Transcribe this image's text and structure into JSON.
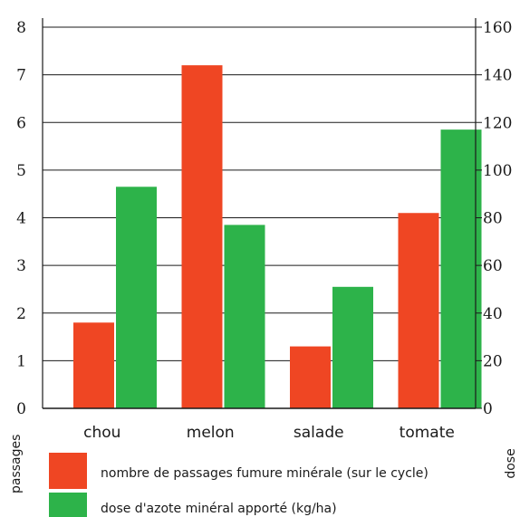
{
  "chart_data": {
    "type": "bar",
    "categories": [
      "chou",
      "melon",
      "salade",
      "tomate"
    ],
    "series": [
      {
        "name": "nombre de passages fumure minérale (sur le cycle)",
        "axis": "left",
        "color": "#ef4623",
        "values": [
          1.8,
          7.2,
          1.3,
          4.1
        ]
      },
      {
        "name": "dose d'azote minéral apporté (kg/ha)",
        "axis": "right",
        "color": "#2db34a",
        "values": [
          93,
          77,
          51,
          117
        ]
      }
    ],
    "y_left": {
      "label": "passages",
      "ylim": [
        0,
        8
      ],
      "ticks": [
        "0",
        "1",
        "2",
        "3",
        "4",
        "5",
        "6",
        "7",
        "8"
      ]
    },
    "y_right": {
      "label": "dose",
      "ylim": [
        0,
        160
      ],
      "ticks": [
        "0",
        "20",
        "40",
        "60",
        "80",
        "100",
        "120",
        "140",
        "160"
      ]
    },
    "grid": "horizontal",
    "legend_position": "bottom-left"
  }
}
